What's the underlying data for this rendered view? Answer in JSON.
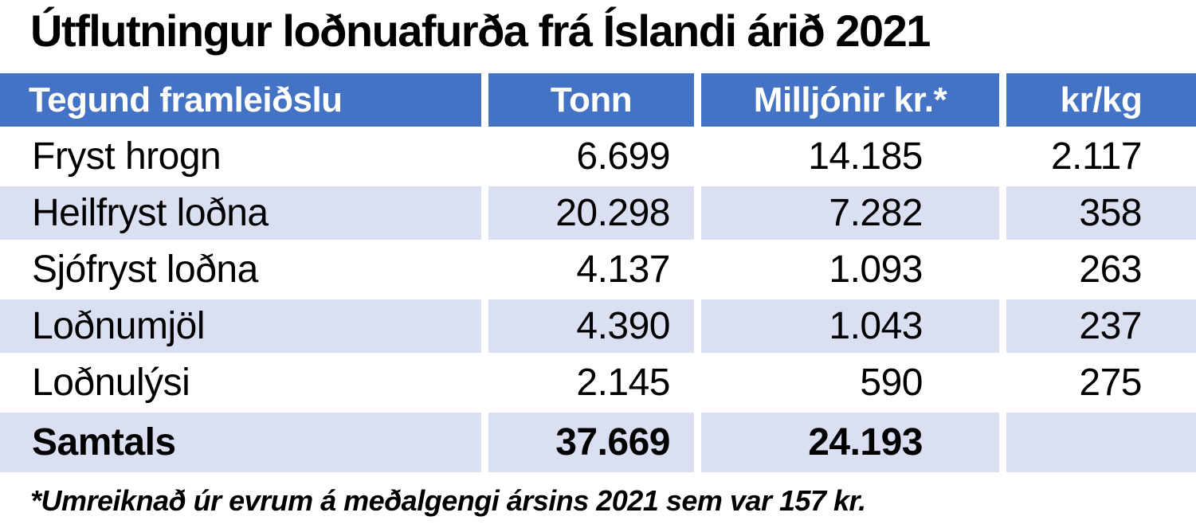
{
  "title": "Útflutningur loðnuafurða frá Íslandi árið 2021",
  "table": {
    "headers": [
      "Tegund framleiðslu",
      "Tonn",
      "Milljónir kr.*",
      "kr/kg"
    ],
    "rows": [
      {
        "cells": [
          "Fryst hrogn",
          "6.699",
          "14.185",
          "2.117"
        ]
      },
      {
        "cells": [
          "Heilfryst loðna",
          "20.298",
          "7.282",
          "358"
        ]
      },
      {
        "cells": [
          "Sjófryst loðna",
          "4.137",
          "1.093",
          "263"
        ]
      },
      {
        "cells": [
          "Loðnumjöl",
          "4.390",
          "1.043",
          "237"
        ]
      },
      {
        "cells": [
          "Loðnulýsi",
          "2.145",
          "590",
          "275"
        ]
      }
    ],
    "total": {
      "cells": [
        "Samtals",
        "37.669",
        "24.193",
        ""
      ]
    }
  },
  "footnote": "*Umreiknað úr evrum á meðalgengi ársins 2021 sem var 157 kr.",
  "colors": {
    "header_bg": "#4472C4",
    "header_text": "#FFFFFF",
    "band_row_bg": "#DAE0F2",
    "white_row_bg": "#FFFFFF",
    "text": "#000000"
  },
  "chart_data": {
    "type": "table",
    "title": "Útflutningur loðnuafurða frá Íslandi árið 2021",
    "columns": [
      "Tegund framleiðslu",
      "Tonn",
      "Milljónir kr.*",
      "kr/kg"
    ],
    "rows": [
      [
        "Fryst hrogn",
        6699,
        14185,
        2117
      ],
      [
        "Heilfryst loðna",
        20298,
        7282,
        358
      ],
      [
        "Sjófryst loðna",
        4137,
        1093,
        263
      ],
      [
        "Loðnumjöl",
        4390,
        1043,
        237
      ],
      [
        "Loðnulýsi",
        2145,
        590,
        275
      ],
      [
        "Samtals",
        37669,
        24193,
        null
      ]
    ],
    "number_format": "icelandic-thousands-dot",
    "footnote": "*Umreiknað úr evrum á meðalgengi ársins 2021 sem var 157 kr."
  }
}
